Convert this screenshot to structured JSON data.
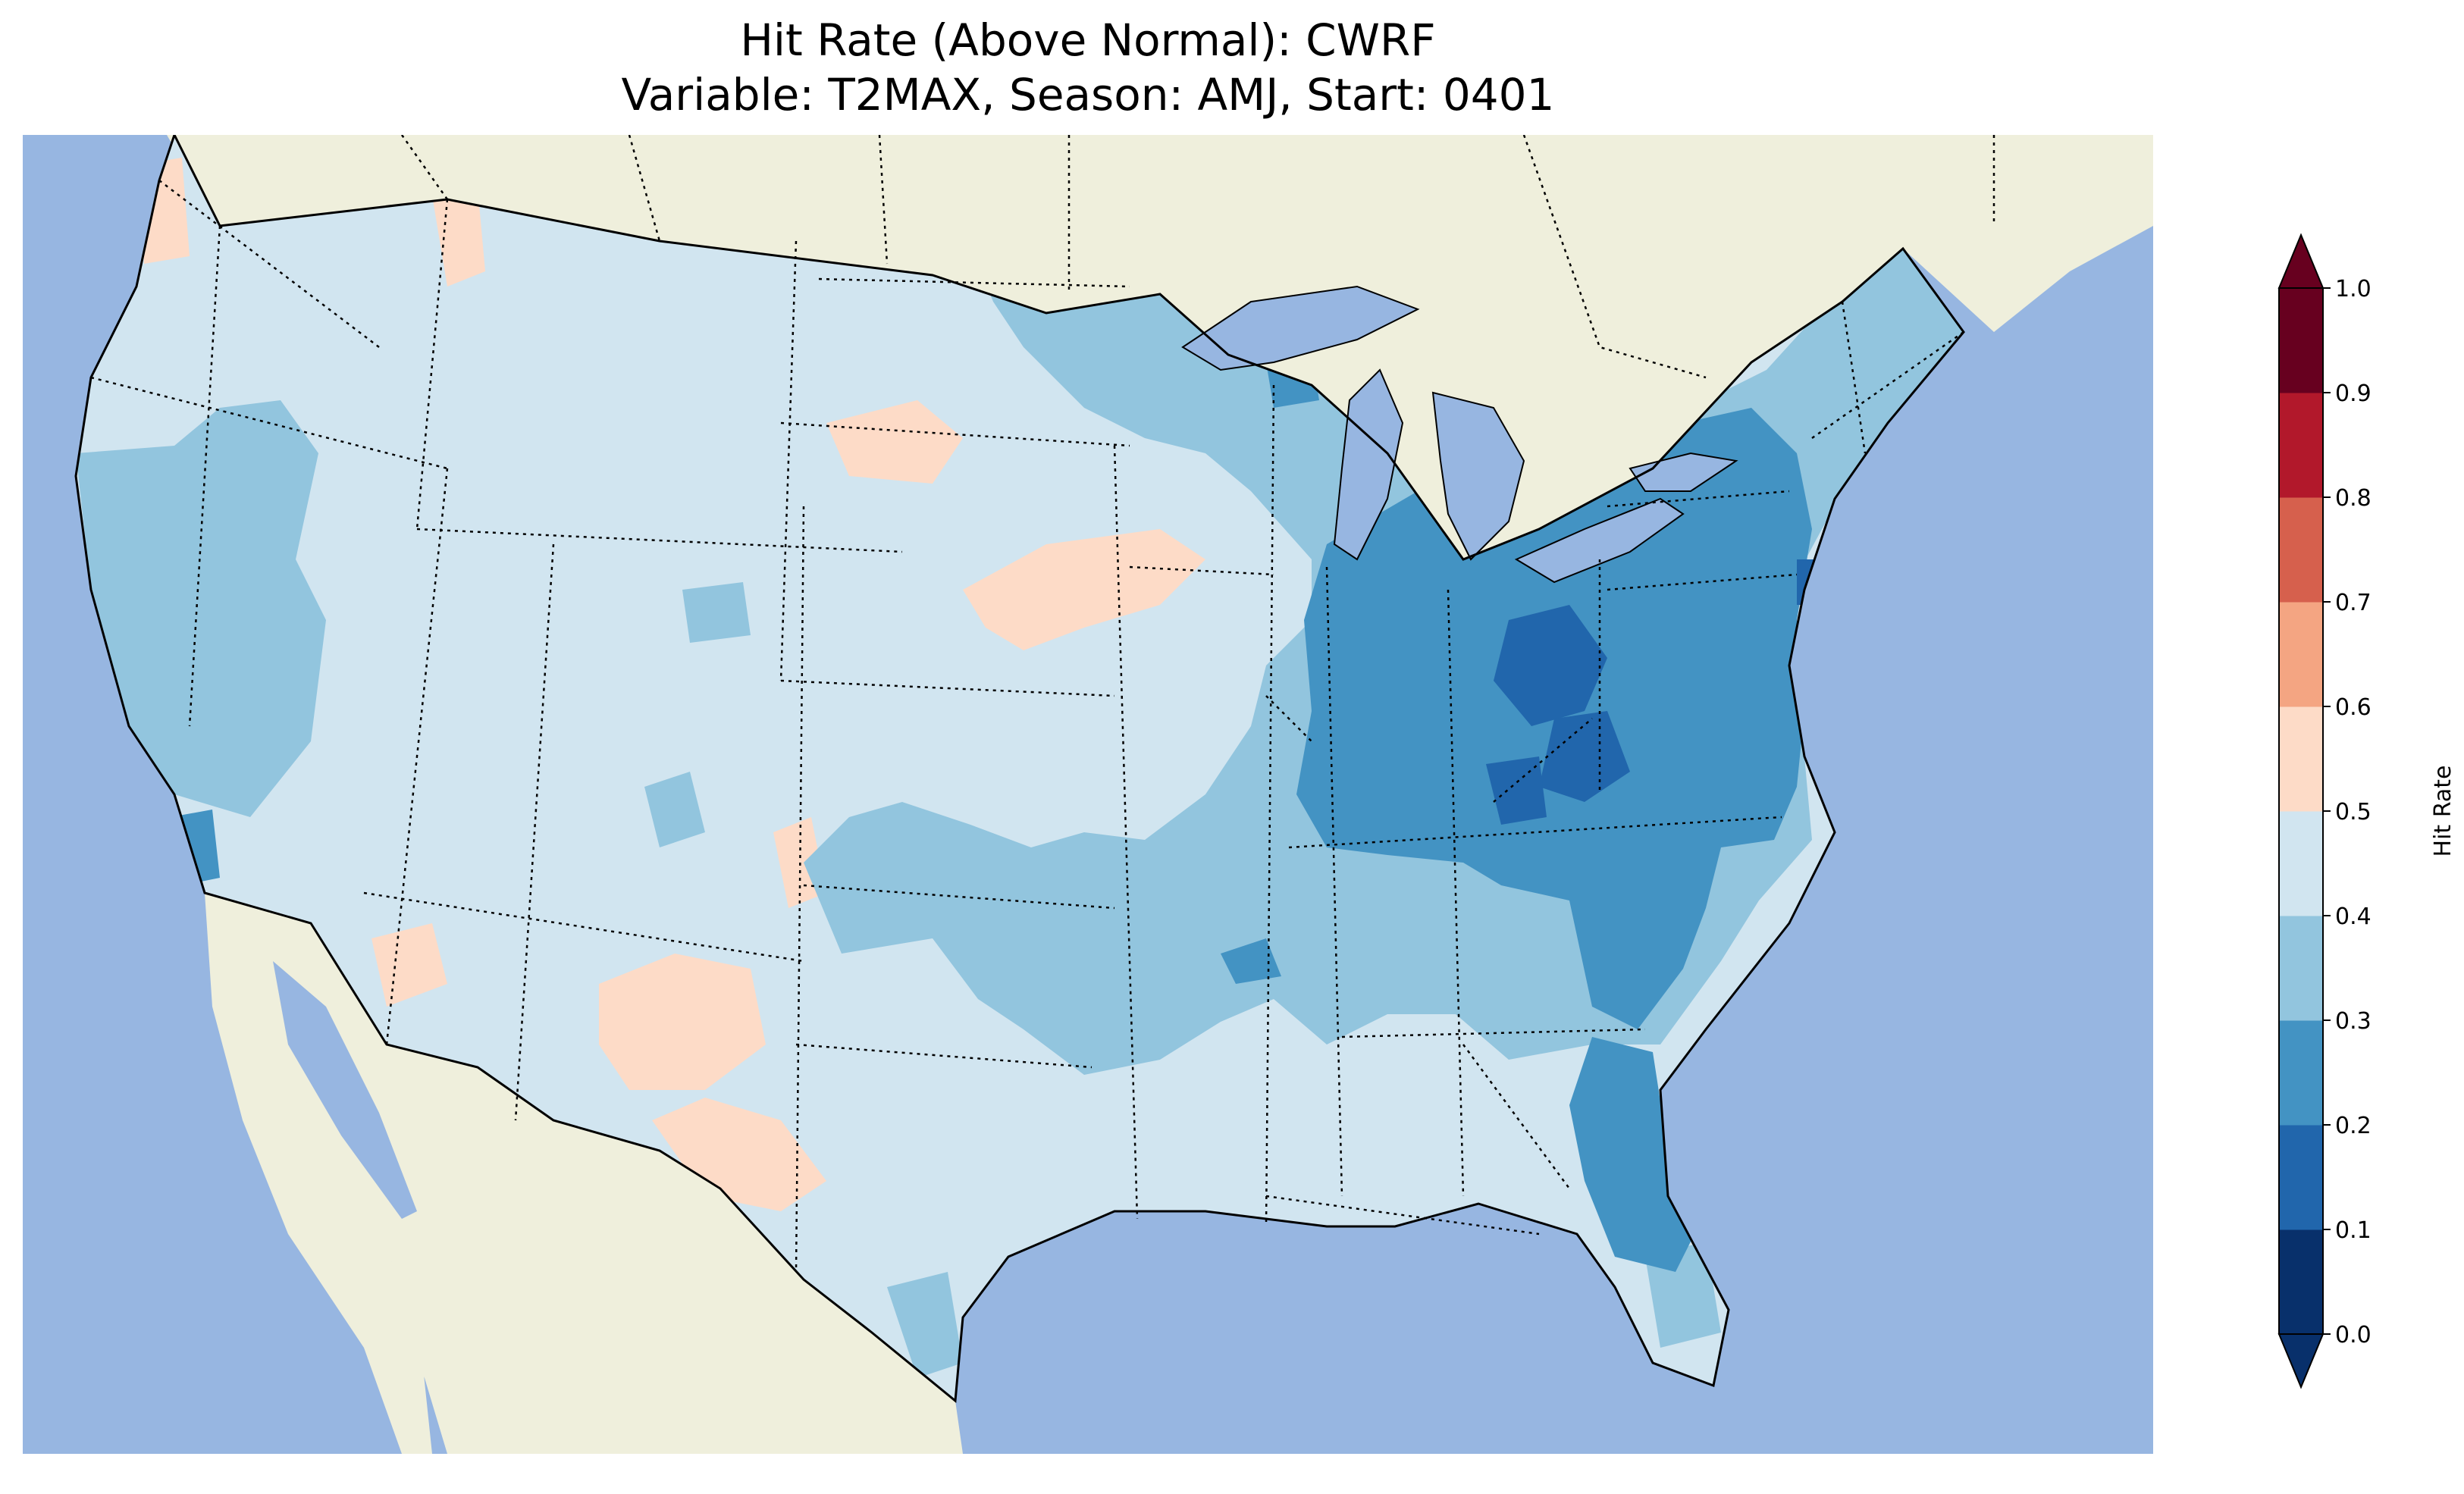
{
  "title": {
    "line1": "Hit Rate (Above Normal): CWRF",
    "line2": "Variable: T2MAX, Season: AMJ, Start: 0401"
  },
  "colorbar": {
    "label": "Hit Rate",
    "ticks": [
      "0.0",
      "0.1",
      "0.2",
      "0.3",
      "0.4",
      "0.5",
      "0.6",
      "0.7",
      "0.8",
      "0.9",
      "1.0"
    ],
    "colors": [
      "#08306b",
      "#2166ac",
      "#4393c3",
      "#92c5de",
      "#d1e5f0",
      "#fddbc7",
      "#f4a582",
      "#d6604d",
      "#b2182b",
      "#67001f"
    ],
    "extend": "both"
  },
  "map": {
    "ocean_color": "#97b6e1",
    "land_color": "#efefdc",
    "lakes_color": "#97b6e1",
    "grid_color_by_bin": {
      "0.2-0.3": "#4393c3",
      "0.3-0.4": "#92c5de",
      "0.4-0.5": "#d1e5f0",
      "0.5-0.6": "#fddbc7"
    }
  }
}
